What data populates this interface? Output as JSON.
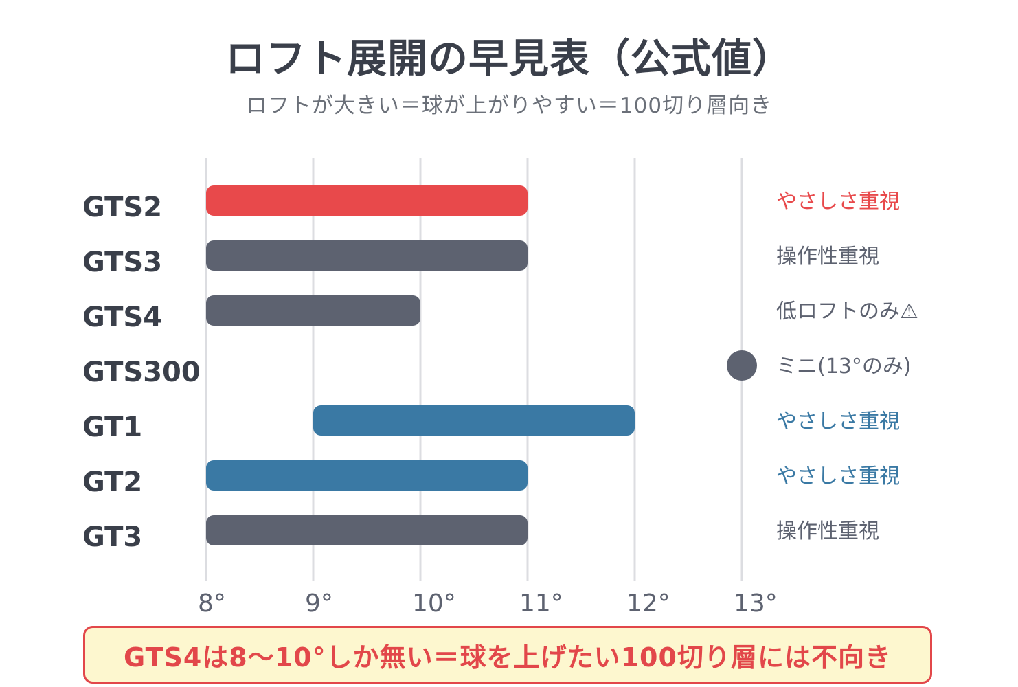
{
  "title": "ロフト展開の早見表（公式値）",
  "subtitle": "ロフトが大きい＝球が上がりやすい＝100切り層向き",
  "footer_note": "GTS4は8〜10°しか無い＝球を上げたい100切り層には不向き",
  "colors": {
    "red": "#e8494b",
    "gray": "#5d6270",
    "blue": "#3a79a4",
    "label": "#3a3f4a",
    "grid": "#dcdde1",
    "tick": "#5d6270"
  },
  "chart_data": {
    "type": "bar",
    "orientation": "horizontal-range",
    "title": "ロフト展開の早見表（公式値）",
    "subtitle": "ロフトが大きい＝球が上がりやすい＝100切り層向き",
    "xlim": [
      8,
      13
    ],
    "x_ticks": [
      "8°",
      "9°",
      "10°",
      "11°",
      "12°",
      "13°"
    ],
    "x_tick_values": [
      8,
      9,
      10,
      11,
      12,
      13
    ],
    "grid": true,
    "categories": [
      "GTS2",
      "GTS3",
      "GTS4",
      "GTS300",
      "GT1",
      "GT2",
      "GT3"
    ],
    "series": [
      {
        "category": "GTS2",
        "min": 8,
        "max": 11,
        "note": "やさしさ重視",
        "color": "red"
      },
      {
        "category": "GTS3",
        "min": 8,
        "max": 11,
        "note": "操作性重視",
        "color": "gray"
      },
      {
        "category": "GTS4",
        "min": 8,
        "max": 10,
        "note": "低ロフトのみ⚠",
        "color": "gray"
      },
      {
        "category": "GTS300",
        "min": 13,
        "max": 13,
        "note": "ミニ(13°のみ)",
        "color": "gray"
      },
      {
        "category": "GT1",
        "min": 9,
        "max": 12,
        "note": "やさしさ重視",
        "color": "blue"
      },
      {
        "category": "GT2",
        "min": 8,
        "max": 11,
        "note": "やさしさ重視",
        "color": "blue"
      },
      {
        "category": "GT3",
        "min": 8,
        "max": 11,
        "note": "操作性重視",
        "color": "gray"
      }
    ]
  }
}
